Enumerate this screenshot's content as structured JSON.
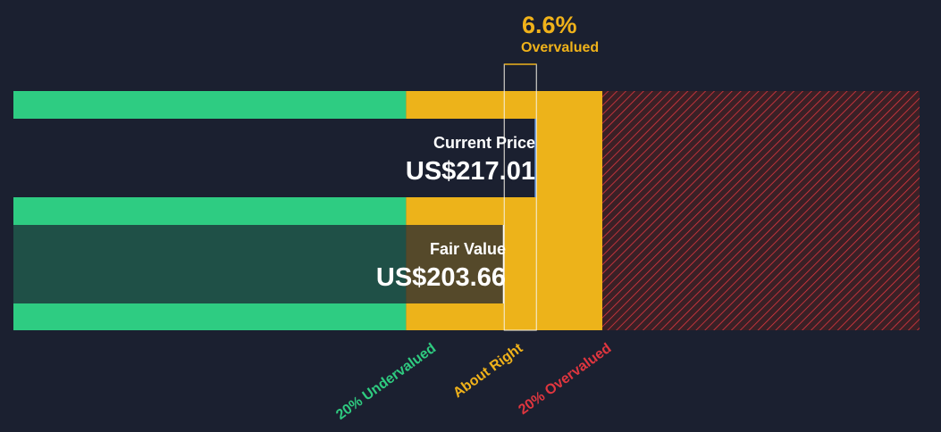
{
  "chart_data": {
    "type": "bar",
    "title": "",
    "summary": {
      "percent": "6.6%",
      "label": "Overvalued"
    },
    "current_price": {
      "label": "Current Price",
      "value_text": "US$217.01",
      "value": 217.01
    },
    "fair_value": {
      "label": "Fair Value",
      "value_text": "US$203.66",
      "value": 203.66
    },
    "zones": [
      {
        "name": "20% Undervalued",
        "from": 0,
        "to": 162.93,
        "color": "#2ecc82"
      },
      {
        "name": "About Right",
        "from": 162.93,
        "to": 244.39,
        "color": "#edb31a"
      },
      {
        "name": "20% Overvalued",
        "from": 244.39,
        "to": 376.0,
        "color": "#e0363f"
      }
    ],
    "xlim": [
      0,
      376.0
    ]
  },
  "colors": {
    "background": "#1b2030",
    "undervalued": "#2ecc82",
    "about_right": "#edb31a",
    "overvalued": "#e0363f"
  }
}
